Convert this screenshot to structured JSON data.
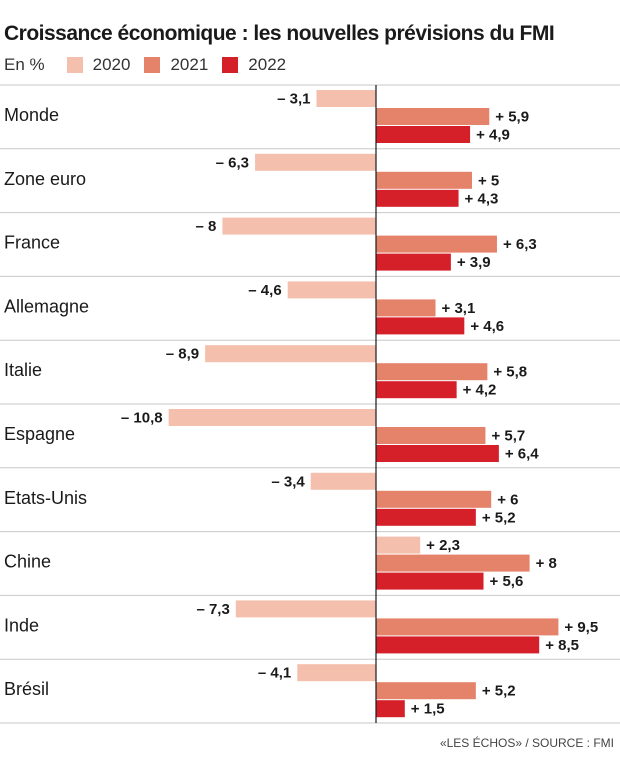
{
  "title": "Croissance économique : les nouvelles prévisions du FMI",
  "source": "«LES ÉCHOS» / SOURCE : FMI",
  "colors": {
    "2020": "#f4c0ad",
    "2021": "#e4826a",
    "2022": "#d5202a",
    "grid": "#c8c8c8",
    "axis": "#1a1a1a"
  },
  "chart_data": {
    "type": "bar",
    "orientation": "horizontal",
    "unit_label": "En %",
    "categories": [
      "Monde",
      "Zone euro",
      "France",
      "Allemagne",
      "Italie",
      "Espagne",
      "Etats-Unis",
      "Chine",
      "Inde",
      "Brésil"
    ],
    "series": [
      {
        "name": "2020",
        "values": [
          -3.1,
          -6.3,
          -8,
          -4.6,
          -8.9,
          -10.8,
          -3.4,
          2.3,
          -7.3,
          -4.1
        ],
        "labels": [
          "– 3,1",
          "– 6,3",
          "– 8",
          "– 4,6",
          "– 8,9",
          "– 10,8",
          "– 3,4",
          "+ 2,3",
          "– 7,3",
          "– 4,1"
        ]
      },
      {
        "name": "2021",
        "values": [
          5.9,
          5,
          6.3,
          3.1,
          5.8,
          5.7,
          6,
          8,
          9.5,
          5.2
        ],
        "labels": [
          "+ 5,9",
          "+ 5",
          "+ 6,3",
          "+ 3,1",
          "+ 5,8",
          "+ 5,7",
          "+ 6",
          "+ 8",
          "+ 9,5",
          "+ 5,2"
        ]
      },
      {
        "name": "2022",
        "values": [
          4.9,
          4.3,
          3.9,
          4.6,
          4.2,
          6.4,
          5.2,
          5.6,
          8.5,
          1.5
        ],
        "labels": [
          "+ 4,9",
          "+ 4,3",
          "+ 3,9",
          "+ 4,6",
          "+ 4,2",
          "+ 6,4",
          "+ 5,2",
          "+ 5,6",
          "+ 8,5",
          "+ 1,5"
        ]
      }
    ],
    "grid": true,
    "legend_position": "top-left"
  }
}
